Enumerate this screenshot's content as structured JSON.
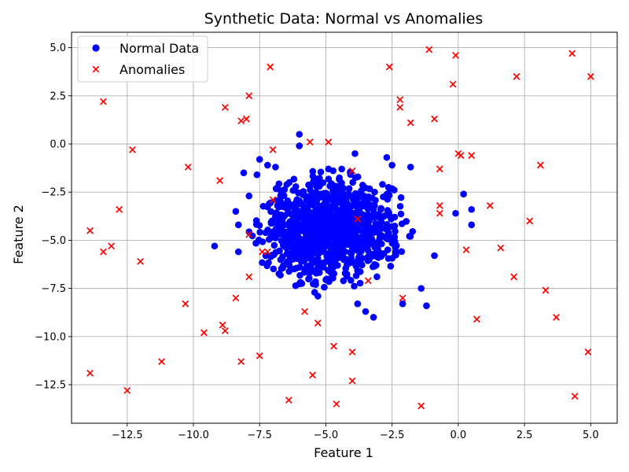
{
  "chart_data": {
    "type": "scatter",
    "title": "Synthetic Data: Normal vs Anomalies",
    "xlabel": "Feature 1",
    "ylabel": "Feature 2",
    "xlim": [
      -14.6,
      6.0
    ],
    "ylim": [
      -14.5,
      5.8
    ],
    "xticks": [
      -12.5,
      -10.0,
      -7.5,
      -5.0,
      -2.5,
      0.0,
      2.5,
      5.0
    ],
    "yticks": [
      -12.5,
      -10.0,
      -7.5,
      -5.0,
      -2.5,
      0.0,
      2.5,
      5.0
    ],
    "xtick_labels": [
      "−12.5",
      "−10.0",
      "−7.5",
      "−5.0",
      "−2.5",
      "0.0",
      "2.5",
      "5.0"
    ],
    "ytick_labels": [
      "−12.5",
      "−10.0",
      "−7.5",
      "−5.0",
      "−2.5",
      "0.0",
      "2.5",
      "5.0"
    ],
    "grid": true,
    "legend_position": "top-left",
    "series": [
      {
        "name": "Normal Data",
        "marker": "circle",
        "color": "#0000ff",
        "distribution": {
          "center": [
            -4.8,
            -4.5
          ],
          "std": [
            1.3,
            1.3
          ],
          "count": 1000,
          "seed": 7
        },
        "points": [
          [
            -6.0,
            0.5
          ],
          [
            -6.0,
            -0.1
          ],
          [
            -3.9,
            -0.5
          ],
          [
            -7.5,
            -0.8
          ],
          [
            -2.7,
            -0.7
          ],
          [
            -7.2,
            -1.1
          ],
          [
            -6.9,
            -1.2
          ],
          [
            -8.1,
            -1.5
          ],
          [
            -1.8,
            -1.2
          ],
          [
            -4.9,
            -1.3
          ],
          [
            -4.4,
            -1.3
          ],
          [
            -2.5,
            -1.1
          ],
          [
            -0.1,
            -3.6
          ],
          [
            0.2,
            -2.6
          ],
          [
            0.5,
            -3.4
          ],
          [
            0.5,
            -4.2
          ],
          [
            -9.2,
            -5.3
          ],
          [
            -8.3,
            -5.6
          ],
          [
            -8.3,
            -4.2
          ],
          [
            -8.4,
            -3.5
          ],
          [
            -3.2,
            -9.0
          ],
          [
            -3.5,
            -8.7
          ],
          [
            -3.8,
            -8.3
          ],
          [
            -2.1,
            -8.3
          ],
          [
            -1.2,
            -8.4
          ],
          [
            -7.6,
            -1.6
          ],
          [
            -7.9,
            -2.7
          ],
          [
            -0.9,
            -5.8
          ],
          [
            -1.4,
            -7.5
          ],
          [
            -5.3,
            -7.9
          ]
        ]
      },
      {
        "name": "Anomalies",
        "marker": "x",
        "color": "#ff0000",
        "points": [
          [
            -13.4,
            2.2
          ],
          [
            -12.3,
            -0.3
          ],
          [
            -12.8,
            -3.4
          ],
          [
            -13.9,
            -4.5
          ],
          [
            -13.1,
            -5.3
          ],
          [
            -13.4,
            -5.6
          ],
          [
            -12.0,
            -6.1
          ],
          [
            -13.9,
            -11.9
          ],
          [
            -12.5,
            -12.8
          ],
          [
            -11.2,
            -11.3
          ],
          [
            -10.2,
            -1.2
          ],
          [
            -10.3,
            -8.3
          ],
          [
            -9.6,
            -9.8
          ],
          [
            -9.0,
            -1.9
          ],
          [
            -8.8,
            1.9
          ],
          [
            -8.9,
            -9.4
          ],
          [
            -8.8,
            -9.7
          ],
          [
            -8.4,
            -8.0
          ],
          [
            -8.2,
            1.2
          ],
          [
            -8.0,
            1.3
          ],
          [
            -7.9,
            2.5
          ],
          [
            -8.2,
            -11.3
          ],
          [
            -7.5,
            -11.0
          ],
          [
            -7.1,
            4.0
          ],
          [
            -7.0,
            -0.3
          ],
          [
            -7.0,
            -2.9
          ],
          [
            -7.2,
            -5.6
          ],
          [
            -7.4,
            -5.6
          ],
          [
            -7.9,
            -4.7
          ],
          [
            -7.9,
            -6.9
          ],
          [
            -6.4,
            -13.3
          ],
          [
            -5.8,
            -8.7
          ],
          [
            -5.6,
            0.1
          ],
          [
            -5.5,
            -12.0
          ],
          [
            -5.3,
            -9.3
          ],
          [
            -4.9,
            0.1
          ],
          [
            -4.7,
            -10.5
          ],
          [
            -4.6,
            -13.5
          ],
          [
            -4.0,
            -1.4
          ],
          [
            -4.0,
            -10.8
          ],
          [
            -4.0,
            -12.3
          ],
          [
            -3.8,
            -3.9
          ],
          [
            -3.4,
            -7.1
          ],
          [
            -2.6,
            4.0
          ],
          [
            -2.2,
            2.3
          ],
          [
            -2.2,
            1.9
          ],
          [
            -2.1,
            -8.0
          ],
          [
            -1.8,
            1.1
          ],
          [
            -1.4,
            -13.6
          ],
          [
            -1.1,
            4.9
          ],
          [
            -0.9,
            1.3
          ],
          [
            -0.7,
            -1.3
          ],
          [
            -0.7,
            -3.2
          ],
          [
            -0.7,
            -3.6
          ],
          [
            -0.2,
            3.1
          ],
          [
            -0.1,
            4.6
          ],
          [
            0.0,
            -0.5
          ],
          [
            0.1,
            -0.6
          ],
          [
            0.3,
            -5.5
          ],
          [
            0.5,
            -0.6
          ],
          [
            0.7,
            -9.1
          ],
          [
            1.2,
            -3.2
          ],
          [
            1.6,
            -5.4
          ],
          [
            2.1,
            -6.9
          ],
          [
            2.2,
            3.5
          ],
          [
            2.7,
            -4.0
          ],
          [
            3.1,
            -1.1
          ],
          [
            3.3,
            -7.6
          ],
          [
            3.7,
            -9.0
          ],
          [
            4.3,
            4.7
          ],
          [
            4.4,
            -13.1
          ],
          [
            4.9,
            -10.8
          ],
          [
            5.0,
            3.5
          ]
        ]
      }
    ]
  }
}
